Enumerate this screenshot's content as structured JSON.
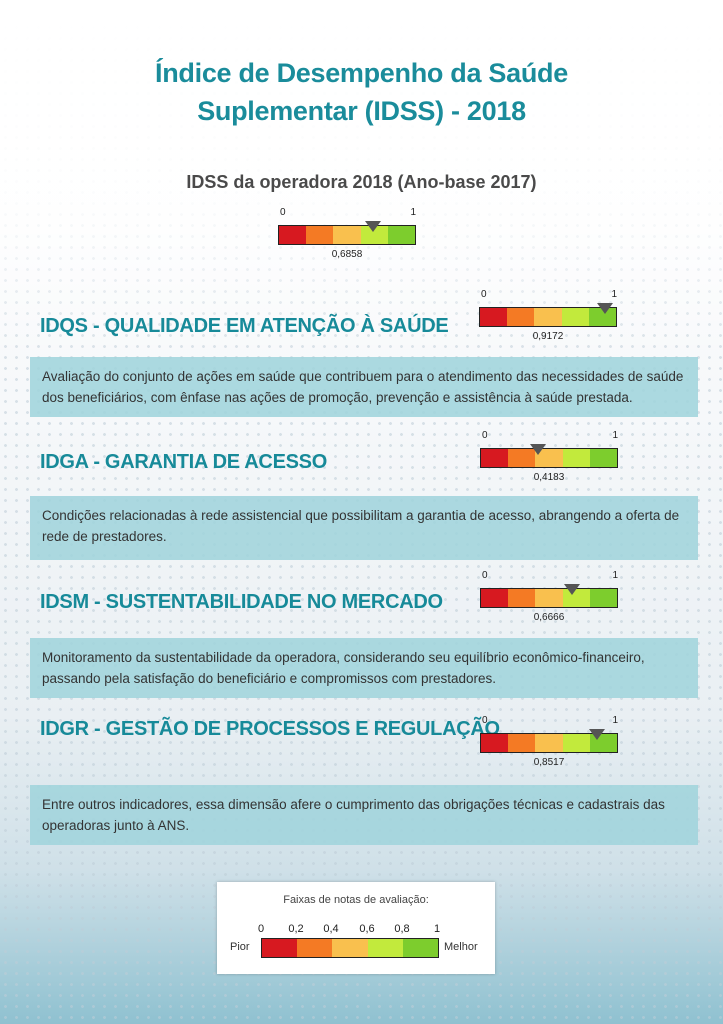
{
  "title": {
    "line1": "Índice de Desempenho da Saúde",
    "line2": "Suplementar (IDSS) - 2018"
  },
  "subtitle": "IDSS da operadora 2018 (Ano-base 2017)",
  "scale_colors": [
    "#d71920",
    "#f47a24",
    "#f9c04e",
    "#c2ea3c",
    "#7dcd2d"
  ],
  "overall": {
    "min_label": "0",
    "max_label": "1",
    "value": 0.6858,
    "value_label": "0,6858"
  },
  "sections": [
    {
      "title": "IDQS - QUALIDADE EM ATENÇÃO À SAÚDE",
      "value": 0.9172,
      "value_label": "0,9172",
      "min_label": "0",
      "max_label": "1",
      "description": "Avaliação do conjunto de ações em saúde que contribuem para o atendimento das necessidades de saúde dos beneficiários, com ênfase nas ações de promoção, prevenção e assistência à saúde prestada."
    },
    {
      "title": "IDGA - GARANTIA DE ACESSO",
      "value": 0.4183,
      "value_label": "0,4183",
      "min_label": "0",
      "max_label": "1",
      "description": "Condições relacionadas à rede assistencial que possibilitam a garantia de acesso, abrangendo a oferta de rede de prestadores."
    },
    {
      "title": "IDSM - SUSTENTABILIDADE NO MERCADO",
      "value": 0.6666,
      "value_label": "0,6666",
      "min_label": "0",
      "max_label": "1",
      "description": "Monitoramento da sustentabilidade da operadora, considerando seu equilíbrio econômico-financeiro, passando pela satisfação do beneficiário e compromissos com prestadores."
    },
    {
      "title": "IDGR - GESTÃO DE PROCESSOS E REGULAÇÃO",
      "value": 0.8517,
      "value_label": "0,8517",
      "min_label": "0",
      "max_label": "1",
      "description": "Entre outros indicadores, essa dimensão afere o cumprimento das obrigações técnicas e cadastrais das operadoras junto à ANS."
    }
  ],
  "legend": {
    "title": "Faixas de notas de avaliação:",
    "ticks": [
      "0",
      "0,2",
      "0,4",
      "0,6",
      "0,8",
      "1"
    ],
    "worst_label": "Pior",
    "best_label": "Melhor"
  }
}
